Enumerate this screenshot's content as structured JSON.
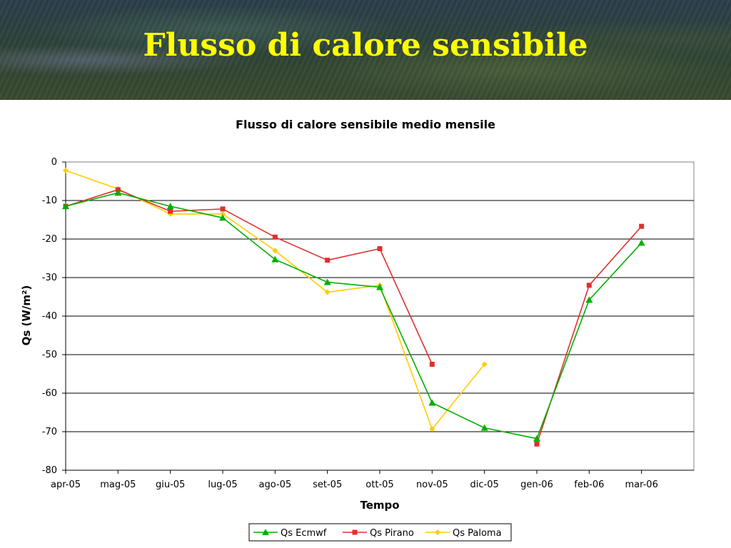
{
  "slide": {
    "title": "Flusso di calore sensibile"
  },
  "colors": {
    "banner_text": "#ffff00"
  },
  "chart_data": {
    "type": "line",
    "title": "Flusso di calore sensibile medio mensile",
    "xlabel": "Tempo",
    "ylabel": "Qs (W/m²)",
    "ylim": [
      -80,
      0
    ],
    "yticks": [
      0,
      -10,
      -20,
      -30,
      -40,
      -50,
      -60,
      -70,
      -80
    ],
    "categories": [
      "apr-05",
      "mag-05",
      "giu-05",
      "lug-05",
      "ago-05",
      "set-05",
      "ott-05",
      "nov-05",
      "dic-05",
      "gen-06",
      "feb-06",
      "mar-06"
    ],
    "grid": true,
    "legend_position": "bottom",
    "series": [
      {
        "name": "Qs Ecmwf",
        "color": "#00b000",
        "marker": "triangle",
        "values": [
          -11.5,
          -8,
          -11.5,
          -14.5,
          -25.3,
          -31.2,
          -32.5,
          -62.5,
          -69,
          -71.8,
          -35.8,
          -21
        ]
      },
      {
        "name": "Qs Pirano",
        "color": "#e03030",
        "marker": "square",
        "values": [
          -11.5,
          -7.2,
          -12.8,
          -12.2,
          -19.5,
          -25.5,
          -22.5,
          -52.5,
          null,
          -73.2,
          -32,
          -16.7
        ]
      },
      {
        "name": "Qs Paloma",
        "color": "#ffcc00",
        "marker": "diamond",
        "values": [
          -2.2,
          -7,
          -13.5,
          -13.5,
          -23,
          -33.8,
          -32,
          -69.3,
          -52.5,
          null,
          null,
          null
        ]
      }
    ]
  }
}
